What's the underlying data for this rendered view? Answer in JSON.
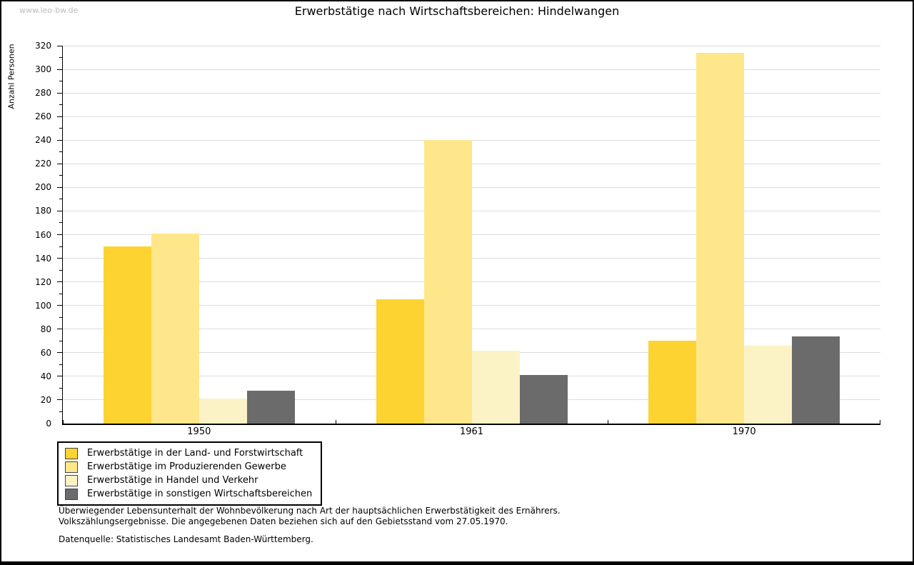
{
  "watermark": "www.leo-bw.de",
  "title": "Erwerbstätige nach Wirtschaftsbereichen: Hindelwangen",
  "footer": {
    "line1": "Überwiegender Lebensunterhalt der Wohnbevölkerung nach Art der hauptsächlichen Erwerbstätigkeit des Ernährers.",
    "line2": "Volkszählungsergebnisse. Die angegebenen Daten beziehen sich auf den Gebietsstand vom 27.05.1970.",
    "source": "Datenquelle: Statistisches Landesamt Baden-Württemberg."
  },
  "chart_data": {
    "type": "bar",
    "title": "Erwerbstätige nach Wirtschaftsbereichen: Hindelwangen",
    "xlabel": "",
    "ylabel": "Anzahl Personen",
    "ylim": [
      0,
      320
    ],
    "ytick_step": 20,
    "y_minor_step": 10,
    "grid": true,
    "legend_position": "bottom-left",
    "categories": [
      "1950",
      "1961",
      "1970"
    ],
    "series": [
      {
        "name": "Erwerbstätige in der Land- und Forstwirtschaft",
        "color": "#fdd332",
        "values": [
          150,
          105,
          70
        ]
      },
      {
        "name": "Erwerbstätige im Produzierenden Gewerbe",
        "color": "#fde78a",
        "values": [
          161,
          240,
          314
        ]
      },
      {
        "name": "Erwerbstätige in Handel und Verkehr",
        "color": "#fbf2c6",
        "values": [
          21,
          62,
          66
        ]
      },
      {
        "name": "Erwerbstätige in sonstigen Wirtschaftsbereichen",
        "color": "#6b6b6b",
        "values": [
          28,
          41,
          74
        ]
      }
    ]
  }
}
